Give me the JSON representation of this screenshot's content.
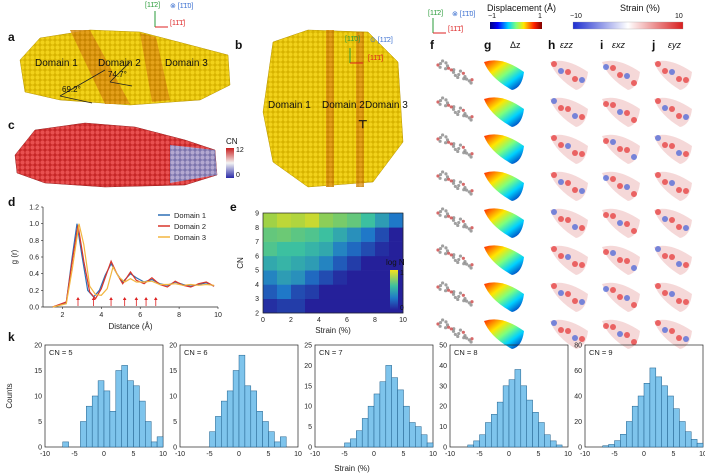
{
  "panels": {
    "a": "a",
    "b": "b",
    "c": "c",
    "d": "d",
    "e": "e",
    "f": "f",
    "g": "g",
    "h": "h",
    "i": "i",
    "j": "j",
    "k": "k"
  },
  "panel_a": {
    "domains": [
      "Domain 1",
      "Domain 2",
      "Domain 3"
    ],
    "angle1": "69.2°",
    "angle2": "74.7°",
    "axes": {
      "up": "[11̄2]",
      "out": "⊗ [1̄1̄0]",
      "right": "[11̄1̄]"
    }
  },
  "panel_b": {
    "domains": [
      "Domain 1",
      "Domain 2",
      "Domain 3"
    ],
    "dislocation": "⊤",
    "axes": {
      "up": "[11̄0]",
      "out": "⊙ [11̄2]",
      "right": "[11̄1̄]"
    }
  },
  "panel_c": {
    "cbar_label": "CN",
    "cbar_max": "12",
    "cbar_min": "0"
  },
  "panel_fj": {
    "axes": {
      "up": "[11̄2]",
      "out": "⊗ [1̄1̄0]",
      "right": "[11̄1̄]"
    },
    "displacement": {
      "title": "Displacement (Å)",
      "min": "−1",
      "max": "1"
    },
    "strain": {
      "title": "Strain (%)",
      "min": "−10",
      "max": "10"
    },
    "col_titles": {
      "g": "Δz",
      "h": "εzz",
      "i": "εxz",
      "j": "εyz"
    }
  },
  "panel_e": {
    "cbar_label": "log N",
    "cbar_max": "1",
    "cbar_min": "0"
  },
  "colors": {
    "domain1": "#2e6fb5",
    "domain2": "#d9352b",
    "domain3": "#f2b640",
    "hist": "#7ec4ec",
    "hist_edge": "#1f5f8b"
  },
  "chart_data": [
    {
      "type": "line",
      "panel": "d",
      "xlabel": "Distance (Å)",
      "ylabel": "g (r)",
      "xlim": [
        1,
        10
      ],
      "ylim": [
        0,
        1.2
      ],
      "xticks": [
        2,
        4,
        6,
        8,
        10
      ],
      "yticks": [
        0,
        0.2,
        0.4,
        0.6,
        0.8,
        1.0,
        1.2
      ],
      "series": [
        {
          "name": "Domain 1",
          "x": [
            1.5,
            2.2,
            2.5,
            2.75,
            3.0,
            3.3,
            3.6,
            3.9,
            4.2,
            4.5,
            4.8,
            5.1,
            5.5,
            5.8,
            6.2,
            6.6,
            7.0,
            7.4,
            7.8,
            8.2,
            8.6,
            9.0,
            9.4,
            9.8
          ],
          "y": [
            0.0,
            0.05,
            0.6,
            1.0,
            0.62,
            0.2,
            0.12,
            0.2,
            0.38,
            0.52,
            0.4,
            0.3,
            0.4,
            0.35,
            0.3,
            0.33,
            0.28,
            0.26,
            0.3,
            0.27,
            0.25,
            0.27,
            0.29,
            0.25
          ]
        },
        {
          "name": "Domain 2",
          "x": [
            1.5,
            2.2,
            2.5,
            2.8,
            3.1,
            3.4,
            3.7,
            4.0,
            4.3,
            4.5,
            4.8,
            5.1,
            5.5,
            5.8,
            6.2,
            6.6,
            7.0,
            7.4,
            7.8,
            8.2,
            8.6,
            9.0,
            9.4,
            9.8
          ],
          "y": [
            0.0,
            0.06,
            0.55,
            0.98,
            0.55,
            0.18,
            0.1,
            0.22,
            0.42,
            0.55,
            0.4,
            0.28,
            0.42,
            0.32,
            0.28,
            0.35,
            0.27,
            0.24,
            0.31,
            0.26,
            0.24,
            0.28,
            0.3,
            0.25
          ]
        },
        {
          "name": "Domain 3",
          "x": [
            1.5,
            2.2,
            2.5,
            2.85,
            3.1,
            3.4,
            3.7,
            4.0,
            4.3,
            4.6,
            4.9,
            5.2,
            5.5,
            5.8,
            6.2,
            6.6,
            7.0,
            7.4,
            7.8,
            8.2,
            8.6,
            9.0,
            9.4,
            9.8
          ],
          "y": [
            0.0,
            0.04,
            0.45,
            1.0,
            0.75,
            0.25,
            0.15,
            0.14,
            0.22,
            0.48,
            0.36,
            0.3,
            0.34,
            0.3,
            0.3,
            0.31,
            0.27,
            0.27,
            0.28,
            0.26,
            0.27,
            0.26,
            0.27,
            0.26
          ]
        }
      ],
      "arrows": [
        2.8,
        3.6,
        4.5,
        5.2,
        5.8,
        6.3,
        6.8
      ]
    },
    {
      "type": "heatmap",
      "panel": "e",
      "xlabel": "Strain (%)",
      "ylabel": "CN",
      "xlim": [
        0,
        10
      ],
      "ylim": [
        2,
        9
      ],
      "xticks": [
        0,
        2,
        4,
        6,
        8,
        10
      ],
      "yticks": [
        2,
        3,
        4,
        5,
        6,
        7,
        8,
        9
      ],
      "x_bins": [
        0,
        1,
        2,
        3,
        4,
        5,
        6,
        7,
        8,
        9
      ],
      "y_bins": [
        2,
        3,
        4,
        5,
        6,
        7,
        8
      ],
      "values": [
        [
          0.05,
          0.1,
          0.1,
          0,
          0,
          0,
          0,
          0,
          0,
          0
        ],
        [
          0.2,
          0.3,
          0.15,
          0.1,
          0,
          0,
          0,
          0,
          0,
          0
        ],
        [
          0.35,
          0.45,
          0.4,
          0.25,
          0.15,
          0.05,
          0,
          0,
          0,
          0
        ],
        [
          0.5,
          0.55,
          0.5,
          0.45,
          0.35,
          0.2,
          0.1,
          0,
          0,
          0
        ],
        [
          0.65,
          0.6,
          0.6,
          0.55,
          0.5,
          0.35,
          0.25,
          0.15,
          0.05,
          0
        ],
        [
          0.7,
          0.72,
          0.68,
          0.65,
          0.6,
          0.5,
          0.4,
          0.3,
          0.15,
          0
        ],
        [
          0.85,
          0.9,
          0.88,
          0.92,
          0.8,
          0.75,
          0.7,
          0.6,
          0.45,
          0.3
        ]
      ]
    },
    {
      "type": "bar",
      "panel": "k",
      "title": "CN = 5",
      "xlim": [
        -10,
        10
      ],
      "ylim": [
        0,
        20
      ],
      "yticks": [
        0,
        5,
        10,
        15,
        20
      ],
      "bins": [
        -7,
        -6,
        -5,
        -4,
        -3,
        -2,
        -1,
        0,
        1,
        2,
        3,
        4,
        5,
        6,
        7,
        8,
        9
      ],
      "values": [
        1,
        0,
        0,
        5,
        8,
        10,
        13,
        11,
        7,
        15,
        16,
        13,
        12,
        9,
        5,
        1,
        2
      ]
    },
    {
      "type": "bar",
      "panel": "k",
      "title": "CN = 6",
      "xlim": [
        -10,
        10
      ],
      "ylim": [
        0,
        20
      ],
      "yticks": [
        0,
        5,
        10,
        15,
        20
      ],
      "bins": [
        -5,
        -4,
        -3,
        -2,
        -1,
        0,
        1,
        2,
        3,
        4,
        5,
        6,
        7
      ],
      "values": [
        3,
        6,
        9,
        11,
        15,
        18,
        12,
        11,
        7,
        5,
        3,
        1,
        2
      ]
    },
    {
      "type": "bar",
      "panel": "k",
      "title": "CN = 7",
      "xlim": [
        -10,
        10
      ],
      "ylim": [
        0,
        25
      ],
      "yticks": [
        0,
        5,
        10,
        15,
        20,
        25
      ],
      "bins": [
        -5,
        -4,
        -3,
        -2,
        -1,
        0,
        1,
        2,
        3,
        4,
        5,
        6,
        7,
        8,
        9
      ],
      "values": [
        1,
        2,
        4,
        7,
        10,
        13,
        16,
        20,
        17,
        14,
        10,
        6,
        5,
        3,
        1
      ]
    },
    {
      "type": "bar",
      "panel": "k",
      "title": "CN = 8",
      "xlim": [
        -10,
        10
      ],
      "ylim": [
        0,
        50
      ],
      "yticks": [
        0,
        10,
        20,
        30,
        40,
        50
      ],
      "bins": [
        -7,
        -6,
        -5,
        -4,
        -3,
        -2,
        -1,
        0,
        1,
        2,
        3,
        4,
        5,
        6,
        7,
        8
      ],
      "values": [
        1,
        3,
        6,
        12,
        16,
        22,
        30,
        33,
        38,
        30,
        23,
        17,
        12,
        6,
        3,
        1
      ]
    },
    {
      "type": "bar",
      "panel": "k",
      "title": "CN = 9",
      "xlim": [
        -10,
        10
      ],
      "ylim": [
        0,
        80
      ],
      "yticks": [
        0,
        20,
        40,
        60,
        80
      ],
      "bins": [
        -7,
        -6,
        -5,
        -4,
        -3,
        -2,
        -1,
        0,
        1,
        2,
        3,
        4,
        5,
        6,
        7,
        8,
        9
      ],
      "values": [
        1,
        2,
        5,
        10,
        20,
        32,
        40,
        50,
        62,
        55,
        48,
        40,
        30,
        20,
        12,
        6,
        3
      ]
    }
  ],
  "k_axis": {
    "xlabel": "Strain (%)",
    "ylabel": "Counts",
    "xticks": [
      -10,
      -5,
      0,
      5,
      10
    ]
  }
}
